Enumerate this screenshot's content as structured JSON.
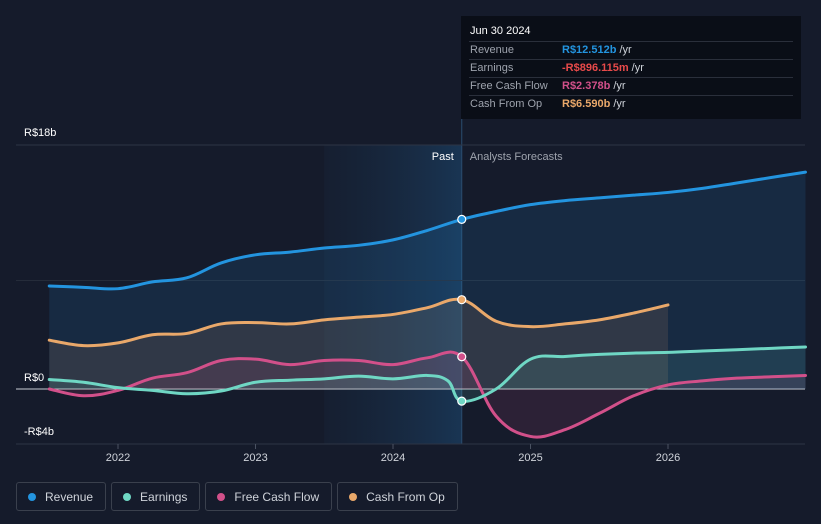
{
  "colors": {
    "revenue": "#2394df",
    "earnings": "#6fd7c4",
    "free_cash_flow": "#d2508a",
    "cash_from_op": "#e9a86a",
    "background": "#151b2b",
    "tooltip_bg": "#0a0e17",
    "grid": "#2a3140"
  },
  "tooltip": {
    "date": "Jun 30 2024",
    "rows": [
      {
        "label": "Revenue",
        "value": "R$12.512b",
        "unit": "/yr",
        "color": "#2394df"
      },
      {
        "label": "Earnings",
        "value": "-R$896.115m",
        "unit": "/yr",
        "color": "#e84a4a"
      },
      {
        "label": "Free Cash Flow",
        "value": "R$2.378b",
        "unit": "/yr",
        "color": "#d2508a"
      },
      {
        "label": "Cash From Op",
        "value": "R$6.590b",
        "unit": "/yr",
        "color": "#e9a86a"
      }
    ]
  },
  "chart_data": {
    "type": "line",
    "title": "",
    "xlabel": "",
    "ylabel": "",
    "y_tick_labels": [
      "R$18b",
      "R$0",
      "-R$4b"
    ],
    "y_ticks": [
      18,
      0,
      -4
    ],
    "ylim": [
      -4,
      18
    ],
    "xlim": [
      2021.25,
      2027.0
    ],
    "x_ticks": [
      2022,
      2023,
      2024,
      2025,
      2026
    ],
    "x_tick_labels": [
      "2022",
      "2023",
      "2024",
      "2025",
      "2026"
    ],
    "past_label": "Past",
    "forecast_label": "Analysts Forecasts",
    "past_shade_start": 2023.5,
    "cutoff": 2024.5,
    "series": [
      {
        "name": "Revenue",
        "key": "revenue",
        "x": [
          2021.5,
          2021.75,
          2022.0,
          2022.25,
          2022.5,
          2022.75,
          2023.0,
          2023.25,
          2023.5,
          2023.75,
          2024.0,
          2024.25,
          2024.5,
          2024.75,
          2025.0,
          2025.25,
          2025.5,
          2025.75,
          2026.0,
          2026.25,
          2026.5,
          2026.75,
          2027.0
        ],
        "values": [
          7.6,
          7.5,
          7.4,
          7.9,
          8.2,
          9.3,
          9.9,
          10.1,
          10.4,
          10.6,
          11.0,
          11.7,
          12.512,
          13.1,
          13.6,
          13.9,
          14.1,
          14.3,
          14.5,
          14.8,
          15.2,
          15.6,
          16.0
        ]
      },
      {
        "name": "Earnings",
        "key": "earnings",
        "x": [
          2021.5,
          2021.75,
          2022.0,
          2022.25,
          2022.5,
          2022.75,
          2023.0,
          2023.25,
          2023.5,
          2023.75,
          2024.0,
          2024.25,
          2024.4,
          2024.5,
          2024.75,
          2025.0,
          2025.25,
          2025.5,
          2025.75,
          2026.0,
          2026.25,
          2026.5,
          2026.75,
          2027.0
        ],
        "values": [
          0.7,
          0.5,
          0.1,
          -0.1,
          -0.35,
          -0.15,
          0.5,
          0.65,
          0.75,
          0.95,
          0.75,
          1.0,
          0.6,
          -0.896,
          0.0,
          2.2,
          2.4,
          2.55,
          2.65,
          2.7,
          2.8,
          2.9,
          3.0,
          3.1
        ]
      },
      {
        "name": "Free Cash Flow",
        "key": "free_cash_flow",
        "x": [
          2021.5,
          2021.75,
          2022.0,
          2022.25,
          2022.5,
          2022.75,
          2023.0,
          2023.25,
          2023.5,
          2023.75,
          2024.0,
          2024.25,
          2024.5,
          2024.75,
          2025.0,
          2025.25,
          2025.5,
          2025.75,
          2026.0,
          2026.25,
          2026.5,
          2026.75,
          2027.0
        ],
        "values": [
          0.0,
          -0.5,
          -0.1,
          0.8,
          1.2,
          2.1,
          2.2,
          1.8,
          2.1,
          2.1,
          1.8,
          2.3,
          2.378,
          -2.0,
          -3.5,
          -3.0,
          -1.8,
          -0.5,
          0.3,
          0.6,
          0.8,
          0.9,
          1.0
        ]
      },
      {
        "name": "Cash From Op",
        "key": "cash_from_op",
        "x": [
          2021.5,
          2021.75,
          2022.0,
          2022.25,
          2022.5,
          2022.75,
          2023.0,
          2023.25,
          2023.5,
          2023.75,
          2024.0,
          2024.25,
          2024.5,
          2024.75,
          2025.0,
          2025.25,
          2025.5,
          2025.75,
          2026.0
        ],
        "values": [
          3.6,
          3.2,
          3.4,
          4.0,
          4.1,
          4.8,
          4.9,
          4.8,
          5.1,
          5.3,
          5.5,
          6.0,
          6.59,
          5.0,
          4.6,
          4.8,
          5.1,
          5.6,
          6.2
        ]
      }
    ],
    "markers": [
      {
        "series": "revenue",
        "x": 2024.5,
        "y": 12.512
      },
      {
        "series": "cash_from_op",
        "x": 2024.5,
        "y": 6.59
      },
      {
        "series": "free_cash_flow",
        "x": 2024.5,
        "y": 2.378
      },
      {
        "series": "earnings",
        "x": 2024.5,
        "y": -0.896
      }
    ]
  },
  "legend": [
    {
      "label": "Revenue",
      "key": "revenue"
    },
    {
      "label": "Earnings",
      "key": "earnings"
    },
    {
      "label": "Free Cash Flow",
      "key": "free_cash_flow"
    },
    {
      "label": "Cash From Op",
      "key": "cash_from_op"
    }
  ]
}
